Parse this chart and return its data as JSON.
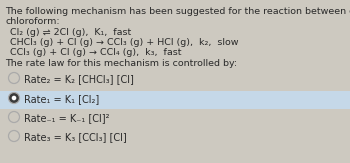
{
  "background_color": "#cdc9c0",
  "title_text1": "The following mechanism has been suggested for the reaction between chlorine and",
  "title_text2": "chloroform:",
  "reaction1": "Cl₂ (g) ⇌ 2Cl (g),  K₁,  fast",
  "reaction2": "CHCl₃ (g) + Cl (g) → CCl₃ (g) + HCl (g),  k₂,  slow",
  "reaction3": "CCl₃ (g) + Cl (g) → CCl₄ (g),  k₃,  fast",
  "rate_intro": "The rate law for this mechanism is controlled by:",
  "options": [
    {
      "label": "Rate₂ = K₂ [CHCl₃] [Cl]",
      "selected": false
    },
    {
      "label": "Rate₁ = K₁ [Cl₂]",
      "selected": true
    },
    {
      "label": "Rate₋₁ = K₋₁ [Cl]²",
      "selected": false
    },
    {
      "label": "Rate₃ = K₃ [CCl₃] [Cl]",
      "selected": false
    }
  ],
  "text_color": "#2a2a2a",
  "circle_edge_color": "#aaaaaa",
  "circle_selected_fill": "#3a3a3a",
  "highlight_color": "#c5d8e8",
  "font_size": 6.8,
  "option_font_size": 7.0
}
